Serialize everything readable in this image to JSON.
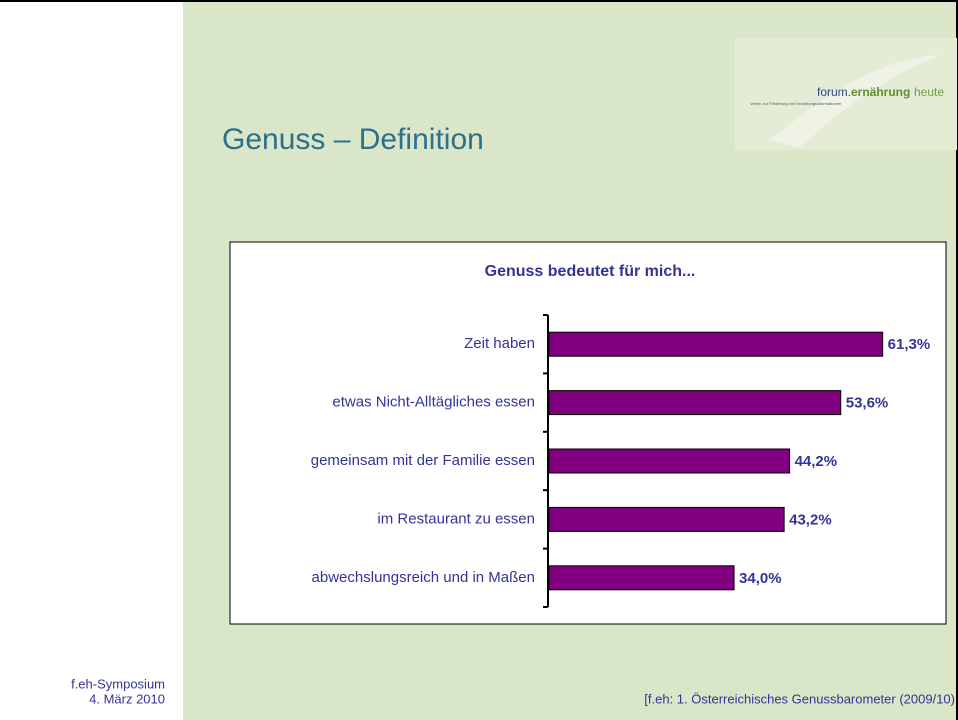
{
  "slide": {
    "title": "Genuss – Definition",
    "footer_left": [
      "f.eh-Symposium",
      "4. März 2010"
    ],
    "footer_right": "[f.eh: 1. Österreichisches Genussbarometer (2009/10)",
    "logo": {
      "forum": "forum.",
      "ernaehrung": "ernährung",
      "heute": "heute",
      "tagline": "Verein zur Förderung von Ernährungsinformationen"
    }
  },
  "chart_data": {
    "type": "hbar",
    "title": "Genuss bedeutet für mich...",
    "categories": [
      "Zeit haben",
      "etwas Nicht-Alltägliches essen",
      "gemeinsam mit der Familie essen",
      "im Restaurant zu essen",
      "abwechslungsreich und in Maßen"
    ],
    "values": [
      61.3,
      53.6,
      44.2,
      43.2,
      34.0
    ],
    "value_labels": [
      "61,3%",
      "53,6%",
      "44,2%",
      "43,2%",
      "34,0%"
    ],
    "color": "#800080",
    "xlim": [
      0,
      70
    ]
  }
}
